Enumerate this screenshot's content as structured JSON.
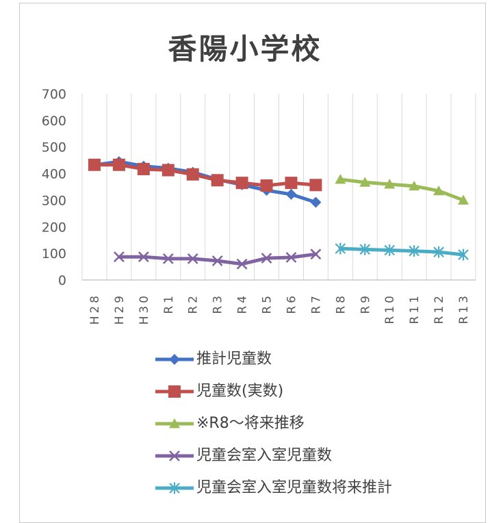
{
  "chart_data": {
    "type": "line",
    "title": "香陽小学校",
    "categories": [
      "H28",
      "H29",
      "H30",
      "R1",
      "R2",
      "R3",
      "R4",
      "R5",
      "R6",
      "R7",
      "R8",
      "R9",
      "R10",
      "R11",
      "R12",
      "R13"
    ],
    "y_ticks": [
      "0",
      "100",
      "200",
      "300",
      "400",
      "500",
      "600",
      "700"
    ],
    "ylim": [
      0,
      700
    ],
    "grid": "vertical",
    "legend_position": "bottom",
    "series": [
      {
        "name": "推計児童数",
        "color": "#4472C4",
        "marker": "diamond",
        "values": [
          432,
          445,
          428,
          420,
          405,
          378,
          358,
          337,
          322,
          292,
          null,
          null,
          null,
          null,
          null,
          null
        ]
      },
      {
        "name": "児童数(実数)",
        "color": "#C0504D",
        "marker": "square",
        "values": [
          433,
          433,
          417,
          413,
          397,
          375,
          365,
          355,
          365,
          357,
          null,
          null,
          null,
          null,
          null,
          null
        ]
      },
      {
        "name": "※R8～将来推移",
        "color": "#9BBB59",
        "marker": "triangle",
        "values": [
          null,
          null,
          null,
          null,
          null,
          null,
          null,
          null,
          null,
          null,
          378,
          367,
          360,
          353,
          335,
          300
        ]
      },
      {
        "name": "児童会室入室児童数",
        "color": "#8064A2",
        "marker": "x",
        "values": [
          null,
          87,
          87,
          80,
          80,
          72,
          60,
          82,
          85,
          97,
          null,
          null,
          null,
          null,
          null,
          null
        ]
      },
      {
        "name": "児童会室入室児童数将来推計",
        "color": "#4BACC6",
        "marker": "star",
        "values": [
          null,
          null,
          null,
          null,
          null,
          null,
          null,
          null,
          null,
          null,
          118,
          115,
          112,
          109,
          105,
          95
        ]
      }
    ]
  }
}
